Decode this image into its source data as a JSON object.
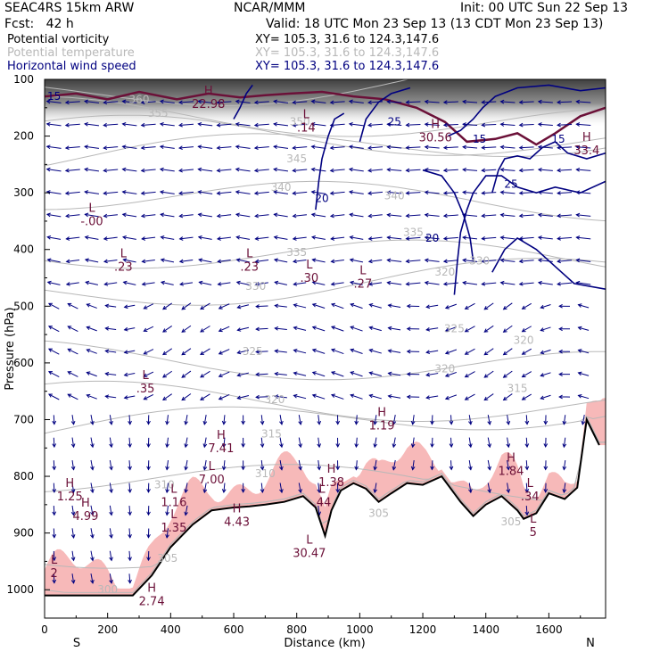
{
  "header": {
    "model": "SEAC4RS 15km ARW",
    "org": "NCAR/MMM",
    "init": "Init: 00 UTC Sun 22 Sep 13",
    "fcst": "Fcst:   42 h",
    "valid": "Valid: 18 UTC Mon 23 Sep 13 (13 CDT Mon 23 Sep 13)",
    "fields": [
      {
        "name": "Potential vorticity",
        "xy": "XY= 105.3, 31.6 to 124.3,147.6",
        "color": "#000000"
      },
      {
        "name": "Potential temperature",
        "xy": "XY= 105.3, 31.6 to 124.3,147.6",
        "color": "#b8b8b8"
      },
      {
        "name": "Horizontal wind speed",
        "xy": "XY= 105.3, 31.6 to 124.3,147.6",
        "color": "#000080"
      }
    ]
  },
  "chart_data": {
    "type": "cross-section",
    "xlabel": "Distance (km)",
    "ylabel": "Pressure (hPa)",
    "xlim": [
      0,
      1780
    ],
    "ylim": [
      1050,
      100
    ],
    "x_ticks": [
      "0",
      "200",
      "400",
      "600",
      "800",
      "1000",
      "1200",
      "1400",
      "1600"
    ],
    "y_ticks": [
      "100",
      "200",
      "300",
      "400",
      "500",
      "600",
      "700",
      "800",
      "900",
      "1000"
    ],
    "x_end_labels": {
      "left": "S",
      "right": "N"
    },
    "terrain": [
      [
        0,
        1010
      ],
      [
        280,
        1010
      ],
      [
        340,
        975
      ],
      [
        400,
        925
      ],
      [
        470,
        885
      ],
      [
        530,
        860
      ],
      [
        600,
        855
      ],
      [
        650,
        853
      ],
      [
        700,
        850
      ],
      [
        760,
        845
      ],
      [
        820,
        835
      ],
      [
        860,
        855
      ],
      [
        890,
        905
      ],
      [
        910,
        860
      ],
      [
        940,
        825
      ],
      [
        980,
        812
      ],
      [
        1020,
        822
      ],
      [
        1060,
        845
      ],
      [
        1100,
        830
      ],
      [
        1150,
        812
      ],
      [
        1200,
        815
      ],
      [
        1260,
        800
      ],
      [
        1320,
        845
      ],
      [
        1360,
        870
      ],
      [
        1400,
        850
      ],
      [
        1450,
        835
      ],
      [
        1500,
        860
      ],
      [
        1520,
        875
      ],
      [
        1560,
        865
      ],
      [
        1600,
        830
      ],
      [
        1650,
        840
      ],
      [
        1690,
        820
      ],
      [
        1720,
        700
      ],
      [
        1760,
        745
      ]
    ],
    "theta_labels": [
      {
        "x": 300,
        "p": 135,
        "v": "360"
      },
      {
        "x": 360,
        "p": 160,
        "v": "355"
      },
      {
        "x": 810,
        "p": 175,
        "v": "350"
      },
      {
        "x": 800,
        "p": 240,
        "v": "345"
      },
      {
        "x": 750,
        "p": 290,
        "v": "340"
      },
      {
        "x": 1110,
        "p": 305,
        "v": "340"
      },
      {
        "x": 1170,
        "p": 370,
        "v": "335"
      },
      {
        "x": 800,
        "p": 405,
        "v": "335"
      },
      {
        "x": 1380,
        "p": 420,
        "v": "330"
      },
      {
        "x": 1270,
        "p": 440,
        "v": "320"
      },
      {
        "x": 670,
        "p": 465,
        "v": "330"
      },
      {
        "x": 1300,
        "p": 540,
        "v": "325"
      },
      {
        "x": 1520,
        "p": 560,
        "v": "320"
      },
      {
        "x": 660,
        "p": 580,
        "v": "325"
      },
      {
        "x": 1270,
        "p": 610,
        "v": "320"
      },
      {
        "x": 1500,
        "p": 645,
        "v": "315"
      },
      {
        "x": 730,
        "p": 665,
        "v": "320"
      },
      {
        "x": 720,
        "p": 725,
        "v": "315"
      },
      {
        "x": 700,
        "p": 795,
        "v": "310"
      },
      {
        "x": 380,
        "p": 815,
        "v": "310"
      },
      {
        "x": 1060,
        "p": 865,
        "v": "305"
      },
      {
        "x": 390,
        "p": 945,
        "v": "305"
      },
      {
        "x": 200,
        "p": 1000,
        "v": "300"
      },
      {
        "x": 1480,
        "p": 880,
        "v": "305"
      }
    ],
    "wind_labels": [
      {
        "x": 1110,
        "p": 175,
        "v": "25"
      },
      {
        "x": 1480,
        "p": 285,
        "v": "25"
      },
      {
        "x": 880,
        "p": 310,
        "v": "20"
      },
      {
        "x": 1230,
        "p": 380,
        "v": "20"
      },
      {
        "x": 30,
        "p": 130,
        "v": "15"
      },
      {
        "x": 1630,
        "p": 205,
        "v": "15"
      },
      {
        "x": 1380,
        "p": 205,
        "v": "15"
      }
    ],
    "extrema": [
      {
        "t": "H",
        "x": 520,
        "p": 133,
        "v": "22.98"
      },
      {
        "t": "L",
        "x": 830,
        "p": 175,
        "v": ".14"
      },
      {
        "t": "H",
        "x": 1240,
        "p": 192,
        "v": "30.56"
      },
      {
        "t": "H",
        "x": 1720,
        "p": 215,
        "v": "33.4"
      },
      {
        "t": "L",
        "x": 150,
        "p": 340,
        "v": "-.00"
      },
      {
        "t": "L",
        "x": 250,
        "p": 420,
        "v": ".23"
      },
      {
        "t": "L",
        "x": 650,
        "p": 420,
        "v": ".23"
      },
      {
        "t": "L",
        "x": 840,
        "p": 440,
        "v": ".30"
      },
      {
        "t": "L",
        "x": 1010,
        "p": 450,
        "v": ".27"
      },
      {
        "t": "L",
        "x": 320,
        "p": 635,
        "v": ".35"
      },
      {
        "t": "H",
        "x": 1070,
        "p": 700,
        "v": "1.19"
      },
      {
        "t": "H",
        "x": 560,
        "p": 740,
        "v": "7.41"
      },
      {
        "t": "L",
        "x": 530,
        "p": 795,
        "v": "7.00"
      },
      {
        "t": "H",
        "x": 910,
        "p": 800,
        "v": "1.38"
      },
      {
        "t": "L",
        "x": 880,
        "p": 835,
        "v": ".44"
      },
      {
        "t": "H",
        "x": 1480,
        "p": 780,
        "v": "1.84"
      },
      {
        "t": "L",
        "x": 1540,
        "p": 825,
        "v": ".34"
      },
      {
        "t": "H",
        "x": 80,
        "p": 825,
        "v": "1.25"
      },
      {
        "t": "H",
        "x": 130,
        "p": 860,
        "v": "4.99"
      },
      {
        "t": "L",
        "x": 410,
        "p": 835,
        "v": "1.16"
      },
      {
        "t": "L",
        "x": 410,
        "p": 880,
        "v": "1.35"
      },
      {
        "t": "H",
        "x": 610,
        "p": 870,
        "v": "4.43"
      },
      {
        "t": "L",
        "x": 840,
        "p": 925,
        "v": "30.47"
      },
      {
        "t": "H",
        "x": 340,
        "p": 1010,
        "v": "2.74"
      },
      {
        "t": "L",
        "x": 30,
        "p": 960,
        "v": "2"
      },
      {
        "t": "L",
        "x": 1550,
        "p": 888,
        "v": "5"
      }
    ],
    "colors": {
      "pv": "#6b1038",
      "theta": "#b8b8b8",
      "wind": "#000080",
      "pv_fill": "#f7b9b9",
      "terrain": "#000000"
    }
  }
}
